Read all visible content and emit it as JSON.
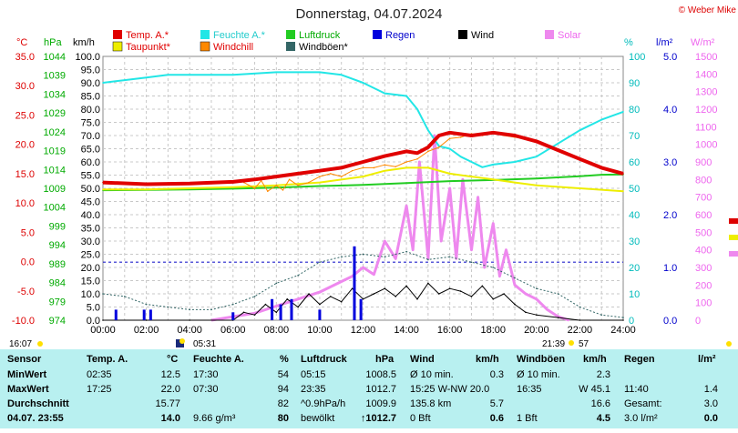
{
  "header": {
    "title": "Donnerstag, 04.07.2024",
    "copyright": "© Weber Mike"
  },
  "legend": [
    {
      "label": "Temp. A.*",
      "color": "#e00000"
    },
    {
      "label": "Feuchte A.*",
      "color": "#22e6e6"
    },
    {
      "label": "Luftdruck",
      "color": "#22cc22"
    },
    {
      "label": "Regen",
      "color": "#0000dd"
    },
    {
      "label": "Wind",
      "color": "#000000"
    },
    {
      "label": "Solar",
      "color": "#ee88ee"
    },
    {
      "label": "Taupunkt*",
      "color": "#eeee00"
    },
    {
      "label": "Windchill",
      "color": "#ff8800"
    },
    {
      "label": "Windböen*",
      "color": "#336666"
    }
  ],
  "axes": {
    "temp": {
      "unit": "°C",
      "color": "#dd0000",
      "ticks": [
        "35.0",
        "30.0",
        "25.0",
        "20.0",
        "15.0",
        "10.0",
        "5.0",
        "0.0",
        "-5.0",
        "-10.0"
      ]
    },
    "pressure": {
      "unit": "hPa",
      "color": "#00aa00",
      "ticks": [
        "1044",
        "1039",
        "1034",
        "1029",
        "1024",
        "1019",
        "1014",
        "1009",
        "1004",
        "999",
        "994",
        "989",
        "984",
        "979",
        "974"
      ]
    },
    "wind": {
      "unit": "km/h",
      "color": "#000000",
      "ticks": [
        "100.0",
        "95.0",
        "90.0",
        "85.0",
        "80.0",
        "75.0",
        "70.0",
        "65.0",
        "60.0",
        "55.0",
        "50.0",
        "45.0",
        "40.0",
        "35.0",
        "30.0",
        "25.0",
        "20.0",
        "15.0",
        "10.0",
        "5.0",
        "0.0"
      ]
    },
    "humidity": {
      "unit": "%",
      "color": "#00bbbb",
      "ticks": [
        "100",
        "90",
        "80",
        "70",
        "60",
        "50",
        "40",
        "30",
        "20",
        "10",
        "0"
      ]
    },
    "rain": {
      "unit": "l/m²",
      "color": "#0000cc",
      "ticks": [
        "5.0",
        "4.0",
        "3.0",
        "2.0",
        "1.0",
        "0.0"
      ]
    },
    "solar": {
      "unit": "W/m²",
      "color": "#ee66ee",
      "ticks": [
        "1500",
        "1400",
        "1300",
        "1200",
        "1100",
        "1000",
        "900",
        "800",
        "700",
        "600",
        "500",
        "400",
        "300",
        "200",
        "100",
        "0"
      ]
    },
    "time": {
      "ticks": [
        "00:00",
        "02:00",
        "04:00",
        "06:00",
        "08:00",
        "10:00",
        "12:00",
        "14:00",
        "16:00",
        "18:00",
        "20:00",
        "22:00",
        "24:00"
      ]
    }
  },
  "sun": {
    "moon_time_left": "16:07",
    "sunrise": "05:31",
    "sunset_time": "21:39",
    "sunset_minutes": "57"
  },
  "chart_data": {
    "type": "line",
    "x_unit": "hours",
    "series": [
      {
        "name": "Temp. A.*",
        "axis": "temp",
        "x": [
          0,
          2,
          4,
          6,
          7,
          8,
          9,
          10,
          11,
          12,
          13,
          14,
          14.5,
          15,
          15.5,
          16,
          17,
          18,
          19,
          20,
          21,
          22,
          23,
          24
        ],
        "values": [
          13.5,
          13.2,
          13.3,
          13.6,
          14.0,
          14.5,
          15.0,
          15.5,
          16.0,
          17.0,
          18.0,
          18.8,
          18.5,
          19.5,
          21.5,
          22.0,
          21.5,
          22.0,
          21.5,
          20.5,
          19.0,
          17.5,
          16.0,
          15.0
        ]
      },
      {
        "name": "Feuchte A.*",
        "axis": "humidity",
        "x": [
          0,
          1,
          2,
          3,
          4,
          6,
          8,
          10,
          11,
          12,
          13,
          14,
          14.5,
          15,
          15.5,
          16,
          16.5,
          17,
          17.5,
          18,
          19,
          20,
          21,
          22,
          23,
          24
        ],
        "values": [
          90,
          91,
          92,
          93,
          93,
          93,
          94,
          94,
          93,
          90,
          86,
          85,
          80,
          72,
          66,
          65,
          62,
          60,
          58,
          59,
          60,
          62,
          67,
          72,
          76,
          79
        ]
      },
      {
        "name": "Luftdruck",
        "axis": "pressure",
        "x": [
          0,
          2,
          4,
          6,
          8,
          10,
          12,
          14,
          16,
          18,
          20,
          22,
          23,
          24
        ],
        "values": [
          1008.5,
          1008.6,
          1008.7,
          1008.9,
          1009.2,
          1009.6,
          1009.9,
          1010.4,
          1010.9,
          1011.2,
          1011.6,
          1012.2,
          1012.6,
          1012.7
        ]
      },
      {
        "name": "Taupunkt*",
        "axis": "temp",
        "x": [
          0,
          2,
          4,
          6,
          8,
          10,
          12,
          13,
          14,
          15,
          16,
          17,
          18,
          19,
          20,
          22,
          24
        ],
        "values": [
          12.3,
          12.3,
          12.5,
          12.7,
          13.0,
          13.5,
          14.5,
          15.5,
          16.0,
          16.0,
          15.0,
          14.5,
          14.0,
          13.5,
          13.0,
          12.5,
          12.0
        ]
      },
      {
        "name": "Windchill",
        "axis": "temp",
        "x": [
          6.5,
          7,
          7.3,
          7.6,
          8,
          8.3,
          8.6,
          9,
          9.5,
          10,
          10.5,
          11,
          11.5,
          12,
          12.5,
          13,
          13.5,
          14,
          14.5,
          15,
          15.5,
          16,
          16.5,
          17,
          17.5,
          18,
          18.5,
          19,
          19.5,
          20
        ],
        "values": [
          13.5,
          12.5,
          13.8,
          12.0,
          13.0,
          12.2,
          14.0,
          13.0,
          13.5,
          14.5,
          15.0,
          14.5,
          15.5,
          16.0,
          16.0,
          16.5,
          16.2,
          17.0,
          17.5,
          18.8,
          19.5,
          21.0,
          21.2,
          21.8,
          21.5,
          22.0,
          21.5,
          21.2,
          21.0,
          20.5
        ]
      },
      {
        "name": "Wind",
        "axis": "wind",
        "x": [
          0,
          2,
          4,
          6,
          6.5,
          7,
          7.5,
          8,
          8.5,
          9,
          9.5,
          10,
          10.5,
          11,
          11.5,
          12,
          12.5,
          13,
          13.5,
          14,
          14.5,
          15,
          15.5,
          16,
          16.5,
          17,
          17.5,
          18,
          18.5,
          19,
          19.5,
          20,
          21,
          22,
          24
        ],
        "values": [
          0,
          0,
          0,
          0,
          3,
          2,
          6,
          3,
          8,
          5,
          10,
          6,
          9,
          7,
          12,
          8,
          10,
          12,
          9,
          13,
          8,
          14,
          10,
          12,
          11,
          9,
          13,
          8,
          10,
          6,
          3,
          2,
          1,
          0,
          0
        ]
      },
      {
        "name": "Windböen*",
        "axis": "wind",
        "x": [
          0,
          1,
          2,
          3,
          4,
          5,
          6,
          7,
          8,
          9,
          10,
          11,
          12,
          13,
          14,
          15,
          16,
          17,
          18,
          19,
          20,
          21,
          22,
          23,
          24
        ],
        "values": [
          10,
          9,
          6,
          5,
          4,
          4,
          6,
          9,
          14,
          17,
          22,
          24,
          25,
          24,
          26,
          23,
          24,
          22,
          20,
          16,
          12,
          10,
          5,
          2,
          1
        ]
      },
      {
        "name": "Solar",
        "axis": "solar",
        "x": [
          5,
          6,
          7,
          8,
          9,
          9.5,
          10,
          11,
          11.5,
          12,
          12.5,
          13,
          13.5,
          14,
          14.3,
          14.6,
          15,
          15.3,
          15.6,
          16,
          16.3,
          16.6,
          17,
          17.3,
          17.6,
          18,
          18.3,
          18.6,
          19,
          19.5,
          20,
          20.5,
          21,
          21.5
        ],
        "values": [
          0,
          20,
          40,
          80,
          120,
          140,
          160,
          220,
          250,
          300,
          260,
          450,
          350,
          650,
          400,
          900,
          350,
          1050,
          450,
          750,
          350,
          800,
          400,
          700,
          300,
          550,
          250,
          400,
          200,
          150,
          120,
          60,
          20,
          0
        ]
      }
    ],
    "rain_bars": {
      "axis": "rain",
      "x": [
        0.6,
        1.9,
        2.2,
        6.0,
        7.8,
        8.2,
        8.7,
        10.0,
        11.6,
        11.9
      ],
      "values": [
        0.2,
        0.2,
        0.2,
        0.15,
        0.4,
        0.3,
        0.4,
        0.2,
        1.4,
        0.4
      ]
    },
    "reference_lines": [
      {
        "axis": "rain",
        "value": 1.1
      }
    ]
  },
  "table": {
    "headers": [
      "Sensor",
      "Temp. A.",
      "°C",
      "Feuchte A.",
      "%",
      "Luftdruck",
      "hPa",
      "Wind",
      "km/h",
      "Windböen",
      "km/h",
      "Regen",
      "l/m²"
    ],
    "rows": [
      {
        "label": "MinWert",
        "cells": [
          "02:35",
          "12.5",
          "17:30",
          "54",
          "05:15",
          "1008.5",
          "Ø 10 min.",
          "0.3",
          "Ø 10 min.",
          "2.3",
          "",
          ""
        ]
      },
      {
        "label": "MaxWert",
        "cells": [
          "17:25",
          "22.0",
          "07:30",
          "94",
          "23:35",
          "1012.7",
          "15:25   W-NW 20.0",
          "",
          "16:35",
          "W 45.1",
          "11:40",
          "1.4"
        ]
      },
      {
        "label": "Durchschnitt",
        "cells": [
          "",
          "15.77",
          "",
          "82",
          "^0.9hPa/h",
          "1009.9",
          "135.8 km",
          "5.7",
          "",
          "16.6",
          "Gesamt:",
          "3.0"
        ]
      },
      {
        "label": "04.07. 23:55",
        "cells": [
          "",
          "14.0",
          "9.66 g/m³",
          "80",
          "bewölkt",
          "↑1012.7",
          "0 Bft",
          "0.6",
          "1 Bft",
          "4.5",
          "3.0 l/m²",
          "0.0"
        ]
      }
    ]
  }
}
